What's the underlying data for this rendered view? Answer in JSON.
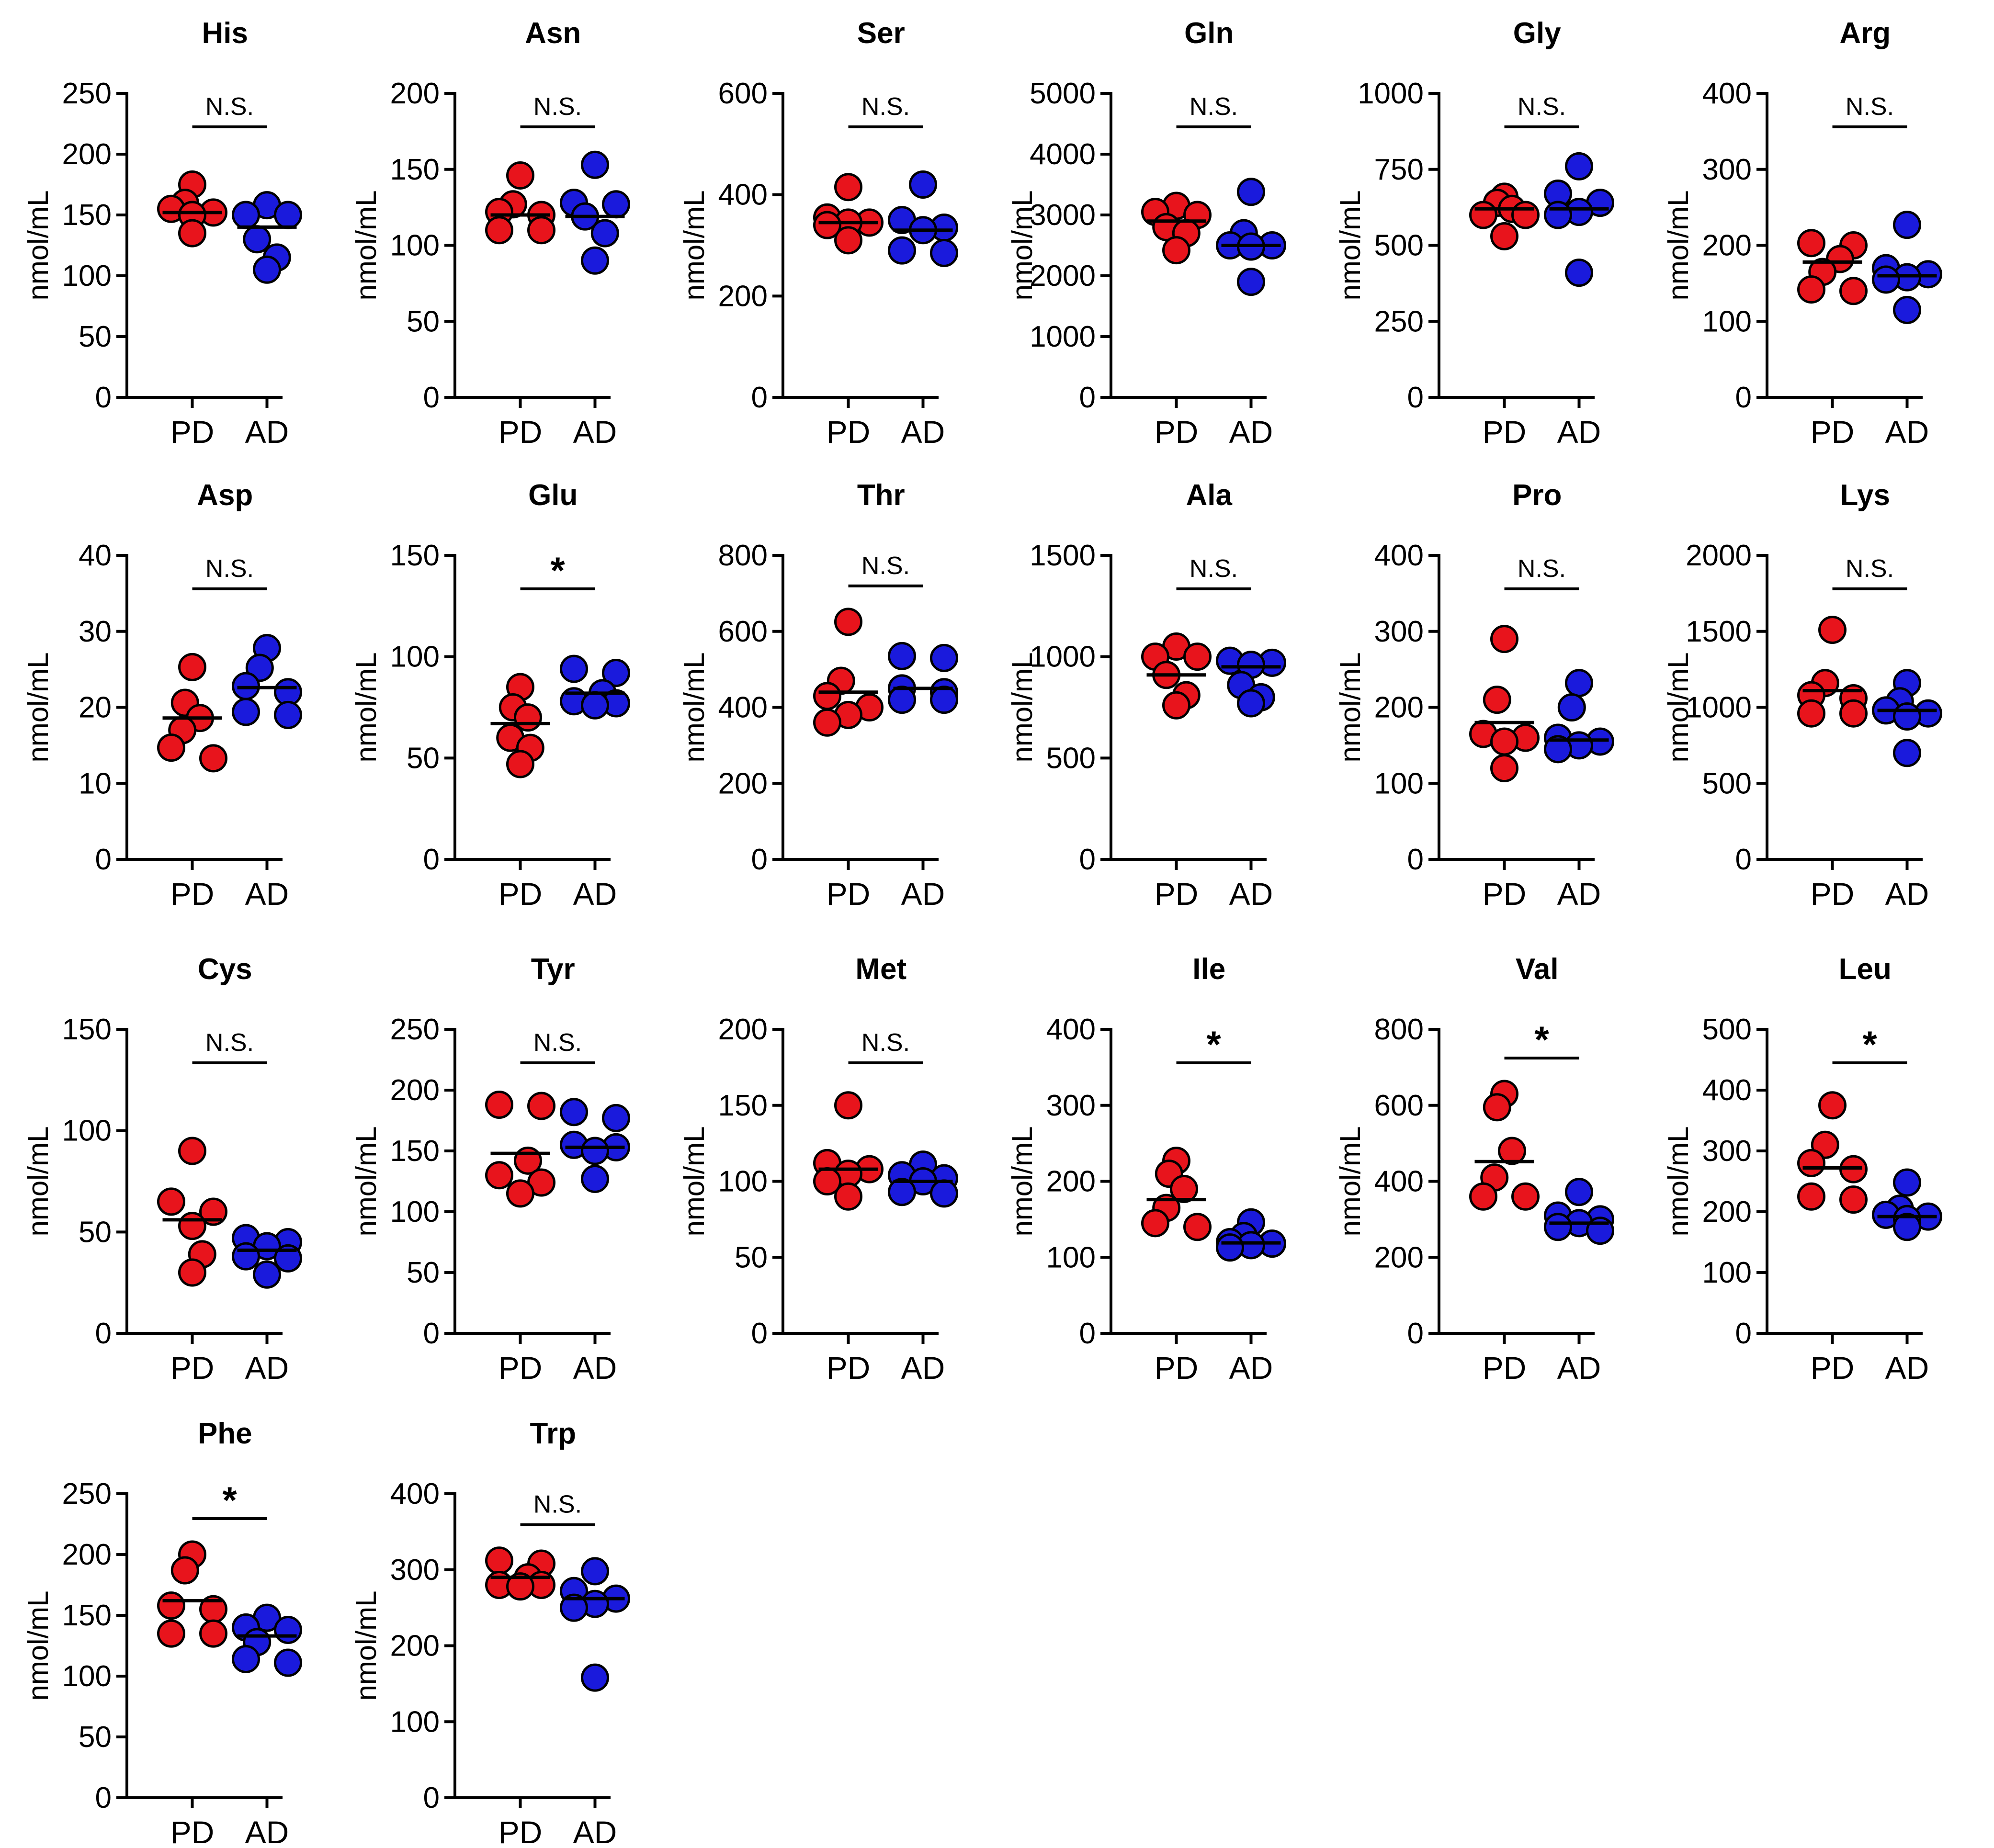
{
  "figure": {
    "y_axis_label": "nmol/mL",
    "colors": {
      "PD": "#e8141c",
      "AD": "#1a1adc",
      "outline": "#000000"
    }
  },
  "chart_data": [
    {
      "type": "scatter",
      "title": "His",
      "xlabel": "",
      "ylabel": "nmol/mL",
      "categories": [
        "PD",
        "AD"
      ],
      "ylim": [
        0,
        250
      ],
      "yticks": [
        0,
        50,
        100,
        150,
        200,
        250
      ],
      "significance": "N.S.",
      "series": [
        {
          "name": "PD",
          "values": [
            175,
            160,
            155,
            152,
            150,
            135
          ],
          "median": 152
        },
        {
          "name": "AD",
          "values": [
            158,
            150,
            150,
            130,
            115,
            105
          ],
          "median": 140
        }
      ]
    },
    {
      "type": "scatter",
      "title": "Asn",
      "xlabel": "",
      "ylabel": "nmol/mL",
      "categories": [
        "PD",
        "AD"
      ],
      "ylim": [
        0,
        200
      ],
      "yticks": [
        0,
        50,
        100,
        150,
        200
      ],
      "significance": "N.S.",
      "series": [
        {
          "name": "PD",
          "values": [
            146,
            127,
            122,
            120,
            110,
            110
          ],
          "median": 120
        },
        {
          "name": "AD",
          "values": [
            153,
            128,
            127,
            119,
            108,
            90
          ],
          "median": 119
        }
      ]
    },
    {
      "type": "scatter",
      "title": "Ser",
      "xlabel": "",
      "ylabel": "nmol/mL",
      "categories": [
        "PD",
        "AD"
      ],
      "ylim": [
        0,
        600
      ],
      "yticks": [
        0,
        200,
        400,
        600
      ],
      "significance": "N.S.",
      "series": [
        {
          "name": "PD",
          "values": [
            415,
            355,
            345,
            345,
            340,
            310
          ],
          "median": 345
        },
        {
          "name": "AD",
          "values": [
            420,
            350,
            335,
            330,
            290,
            285
          ],
          "median": 330
        }
      ]
    },
    {
      "type": "scatter",
      "title": "Gln",
      "xlabel": "",
      "ylabel": "nmol/mL",
      "categories": [
        "PD",
        "AD"
      ],
      "ylim": [
        0,
        5000
      ],
      "yticks": [
        0,
        1000,
        2000,
        3000,
        4000,
        5000
      ],
      "significance": "N.S.",
      "series": [
        {
          "name": "PD",
          "values": [
            3150,
            3050,
            3000,
            2800,
            2700,
            2420
          ],
          "median": 2900
        },
        {
          "name": "AD",
          "values": [
            3380,
            2700,
            2500,
            2500,
            2480,
            1900
          ],
          "median": 2500
        }
      ]
    },
    {
      "type": "scatter",
      "title": "Gly",
      "xlabel": "",
      "ylabel": "nmol/mL",
      "categories": [
        "PD",
        "AD"
      ],
      "ylim": [
        0,
        1000
      ],
      "yticks": [
        0,
        250,
        500,
        750,
        1000
      ],
      "significance": "N.S.",
      "series": [
        {
          "name": "PD",
          "values": [
            660,
            640,
            620,
            600,
            600,
            530
          ],
          "median": 620
        },
        {
          "name": "AD",
          "values": [
            760,
            670,
            640,
            610,
            600,
            410
          ],
          "median": 620
        }
      ]
    },
    {
      "type": "scatter",
      "title": "Arg",
      "xlabel": "",
      "ylabel": "nmol/mL",
      "categories": [
        "PD",
        "AD"
      ],
      "ylim": [
        0,
        400
      ],
      "yticks": [
        0,
        100,
        200,
        300,
        400
      ],
      "significance": "N.S.",
      "series": [
        {
          "name": "PD",
          "values": [
            203,
            200,
            182,
            165,
            142,
            140
          ],
          "median": 178
        },
        {
          "name": "AD",
          "values": [
            227,
            170,
            162,
            158,
            155,
            115
          ],
          "median": 160
        }
      ]
    },
    {
      "type": "scatter",
      "title": "Asp",
      "xlabel": "",
      "ylabel": "nmol/mL",
      "categories": [
        "PD",
        "AD"
      ],
      "ylim": [
        0,
        40
      ],
      "yticks": [
        0,
        10,
        20,
        30,
        40
      ],
      "significance": "N.S.",
      "series": [
        {
          "name": "PD",
          "values": [
            25.3,
            20.6,
            18.6,
            17.0,
            14.7,
            13.3
          ],
          "median": 18.6
        },
        {
          "name": "AD",
          "values": [
            27.8,
            25.2,
            22.8,
            22.0,
            19.4,
            19.0
          ],
          "median": 22.6
        }
      ]
    },
    {
      "type": "scatter",
      "title": "Glu",
      "xlabel": "",
      "ylabel": "nmol/mL",
      "categories": [
        "PD",
        "AD"
      ],
      "ylim": [
        0,
        150
      ],
      "yticks": [
        0,
        50,
        100,
        150
      ],
      "significance": "*",
      "series": [
        {
          "name": "PD",
          "values": [
            85,
            75,
            70,
            60,
            55,
            47
          ],
          "median": 67
        },
        {
          "name": "AD",
          "values": [
            94,
            92,
            82,
            78,
            77,
            76
          ],
          "median": 82
        }
      ]
    },
    {
      "type": "scatter",
      "title": "Thr",
      "xlabel": "",
      "ylabel": "nmol/mL",
      "categories": [
        "PD",
        "AD"
      ],
      "ylim": [
        0,
        800
      ],
      "yticks": [
        0,
        200,
        400,
        600,
        800
      ],
      "significance": "N.S.",
      "series": [
        {
          "name": "PD",
          "values": [
            625,
            470,
            430,
            400,
            380,
            360
          ],
          "median": 440
        },
        {
          "name": "AD",
          "values": [
            535,
            530,
            450,
            440,
            420,
            420
          ],
          "median": 450
        }
      ]
    },
    {
      "type": "scatter",
      "title": "Ala",
      "xlabel": "",
      "ylabel": "nmol/mL",
      "categories": [
        "PD",
        "AD"
      ],
      "ylim": [
        0,
        1500
      ],
      "yticks": [
        0,
        500,
        1000,
        1500
      ],
      "significance": "N.S.",
      "series": [
        {
          "name": "PD",
          "values": [
            1050,
            1000,
            1000,
            910,
            810,
            760
          ],
          "median": 910
        },
        {
          "name": "AD",
          "values": [
            980,
            970,
            960,
            860,
            800,
            770
          ],
          "median": 950
        }
      ]
    },
    {
      "type": "scatter",
      "title": "Pro",
      "xlabel": "",
      "ylabel": "nmol/mL",
      "categories": [
        "PD",
        "AD"
      ],
      "ylim": [
        0,
        400
      ],
      "yticks": [
        0,
        100,
        200,
        300,
        400
      ],
      "significance": "N.S.",
      "series": [
        {
          "name": "PD",
          "values": [
            290,
            210,
            165,
            160,
            155,
            120
          ],
          "median": 180
        },
        {
          "name": "AD",
          "values": [
            232,
            200,
            160,
            155,
            150,
            145
          ],
          "median": 157
        }
      ]
    },
    {
      "type": "scatter",
      "title": "Lys",
      "xlabel": "",
      "ylabel": "nmol/mL",
      "categories": [
        "PD",
        "AD"
      ],
      "ylim": [
        0,
        2000
      ],
      "yticks": [
        0,
        500,
        1000,
        1500,
        2000
      ],
      "significance": "N.S.",
      "series": [
        {
          "name": "PD",
          "values": [
            1510,
            1160,
            1080,
            1060,
            960,
            960
          ],
          "median": 1110
        },
        {
          "name": "AD",
          "values": [
            1160,
            1040,
            980,
            960,
            940,
            700
          ],
          "median": 980
        }
      ]
    },
    {
      "type": "scatter",
      "title": "Cys",
      "xlabel": "",
      "ylabel": "nmol/mL",
      "categories": [
        "PD",
        "AD"
      ],
      "ylim": [
        0,
        150
      ],
      "yticks": [
        0,
        50,
        100,
        150
      ],
      "significance": "N.S.",
      "series": [
        {
          "name": "PD",
          "values": [
            90,
            65,
            60,
            53,
            39,
            30
          ],
          "median": 56
        },
        {
          "name": "AD",
          "values": [
            47,
            45,
            43,
            38,
            37,
            29
          ],
          "median": 41
        }
      ]
    },
    {
      "type": "scatter",
      "title": "Tyr",
      "xlabel": "",
      "ylabel": "nmol/mL",
      "categories": [
        "PD",
        "AD"
      ],
      "ylim": [
        0,
        250
      ],
      "yticks": [
        0,
        50,
        100,
        150,
        200,
        250
      ],
      "significance": "N.S.",
      "series": [
        {
          "name": "PD",
          "values": [
            188,
            187,
            142,
            130,
            124,
            115
          ],
          "median": 148
        },
        {
          "name": "AD",
          "values": [
            182,
            177,
            155,
            153,
            150,
            127
          ],
          "median": 153
        }
      ]
    },
    {
      "type": "scatter",
      "title": "Met",
      "xlabel": "",
      "ylabel": "nmol/mL",
      "categories": [
        "PD",
        "AD"
      ],
      "ylim": [
        0,
        200
      ],
      "yticks": [
        0,
        50,
        100,
        150,
        200
      ],
      "significance": "N.S.",
      "series": [
        {
          "name": "PD",
          "values": [
            150,
            112,
            108,
            105,
            100,
            90
          ],
          "median": 108
        },
        {
          "name": "AD",
          "values": [
            111,
            104,
            102,
            100,
            93,
            92
          ],
          "median": 100
        }
      ]
    },
    {
      "type": "scatter",
      "title": "Ile",
      "xlabel": "",
      "ylabel": "nmol/mL",
      "categories": [
        "PD",
        "AD"
      ],
      "ylim": [
        0,
        400
      ],
      "yticks": [
        0,
        100,
        200,
        300,
        400
      ],
      "significance": "*",
      "series": [
        {
          "name": "PD",
          "values": [
            227,
            210,
            190,
            165,
            145,
            140
          ],
          "median": 176
        },
        {
          "name": "AD",
          "values": [
            146,
            128,
            120,
            118,
            116,
            113
          ],
          "median": 119
        }
      ]
    },
    {
      "type": "scatter",
      "title": "Val",
      "xlabel": "",
      "ylabel": "nmol/mL",
      "categories": [
        "PD",
        "AD"
      ],
      "ylim": [
        0,
        800
      ],
      "yticks": [
        0,
        200,
        400,
        600,
        800
      ],
      "significance": "*",
      "series": [
        {
          "name": "PD",
          "values": [
            630,
            595,
            480,
            410,
            360,
            360
          ],
          "median": 452
        },
        {
          "name": "AD",
          "values": [
            372,
            310,
            300,
            290,
            280,
            270
          ],
          "median": 290
        }
      ]
    },
    {
      "type": "scatter",
      "title": "Leu",
      "xlabel": "",
      "ylabel": "nmol/mL",
      "categories": [
        "PD",
        "AD"
      ],
      "ylim": [
        0,
        500
      ],
      "yticks": [
        0,
        100,
        200,
        300,
        400,
        500
      ],
      "significance": "*",
      "series": [
        {
          "name": "PD",
          "values": [
            375,
            310,
            280,
            270,
            225,
            220
          ],
          "median": 272
        },
        {
          "name": "AD",
          "values": [
            248,
            205,
            195,
            192,
            188,
            175
          ],
          "median": 192
        }
      ]
    },
    {
      "type": "scatter",
      "title": "Phe",
      "xlabel": "",
      "ylabel": "nmol/mL",
      "categories": [
        "PD",
        "AD"
      ],
      "ylim": [
        0,
        250
      ],
      "yticks": [
        0,
        50,
        100,
        150,
        200,
        250
      ],
      "significance": "*",
      "series": [
        {
          "name": "PD",
          "values": [
            200,
            187,
            158,
            155,
            135,
            135
          ],
          "median": 162
        },
        {
          "name": "AD",
          "values": [
            148,
            140,
            138,
            128,
            114,
            111
          ],
          "median": 133
        }
      ]
    },
    {
      "type": "scatter",
      "title": "Trp",
      "xlabel": "",
      "ylabel": "nmol/mL",
      "categories": [
        "PD",
        "AD"
      ],
      "ylim": [
        0,
        400
      ],
      "yticks": [
        0,
        100,
        200,
        300,
        400
      ],
      "significance": "N.S.",
      "series": [
        {
          "name": "PD",
          "values": [
            312,
            308,
            290,
            280,
            280,
            278
          ],
          "median": 290
        },
        {
          "name": "AD",
          "values": [
            298,
            272,
            262,
            255,
            250,
            158
          ],
          "median": 262
        }
      ]
    }
  ]
}
